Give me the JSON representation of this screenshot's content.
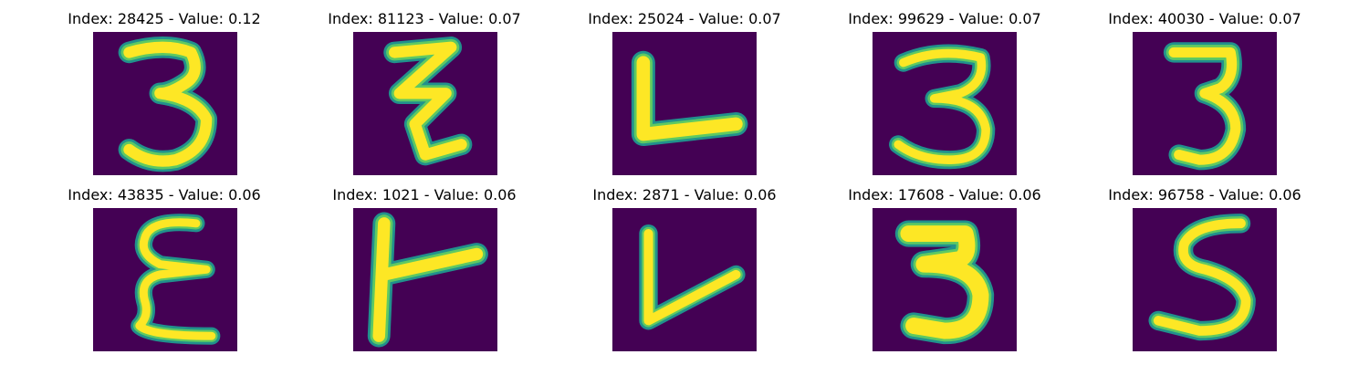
{
  "colors": {
    "background": "#440154",
    "stroke_edge": "#21918c",
    "stroke_mid": "#5ec962",
    "stroke_core": "#fde725"
  },
  "panels": [
    {
      "title": "Index: 28425 - Value: 0.12",
      "index": 28425,
      "value": 0.12,
      "glyph": "3"
    },
    {
      "title": "Index: 81123 - Value: 0.07",
      "index": 81123,
      "value": 0.07,
      "glyph": "Z"
    },
    {
      "title": "Index: 25024 - Value: 0.07",
      "index": 25024,
      "value": 0.07,
      "glyph": "L"
    },
    {
      "title": "Index: 99629 - Value: 0.07",
      "index": 99629,
      "value": 0.07,
      "glyph": "3"
    },
    {
      "title": "Index: 40030 - Value: 0.07",
      "index": 40030,
      "value": 0.07,
      "glyph": "3"
    },
    {
      "title": "Index: 43835 - Value: 0.06",
      "index": 43835,
      "value": 0.06,
      "glyph": "E"
    },
    {
      "title": "Index: 1021 - Value: 0.06",
      "index": 1021,
      "value": 0.06,
      "glyph": "T"
    },
    {
      "title": "Index: 2871 - Value: 0.06",
      "index": 2871,
      "value": 0.06,
      "glyph": "V"
    },
    {
      "title": "Index: 17608 - Value: 0.06",
      "index": 17608,
      "value": 0.06,
      "glyph": "3"
    },
    {
      "title": "Index: 96758 - Value: 0.06",
      "index": 96758,
      "value": 0.06,
      "glyph": "S"
    }
  ]
}
